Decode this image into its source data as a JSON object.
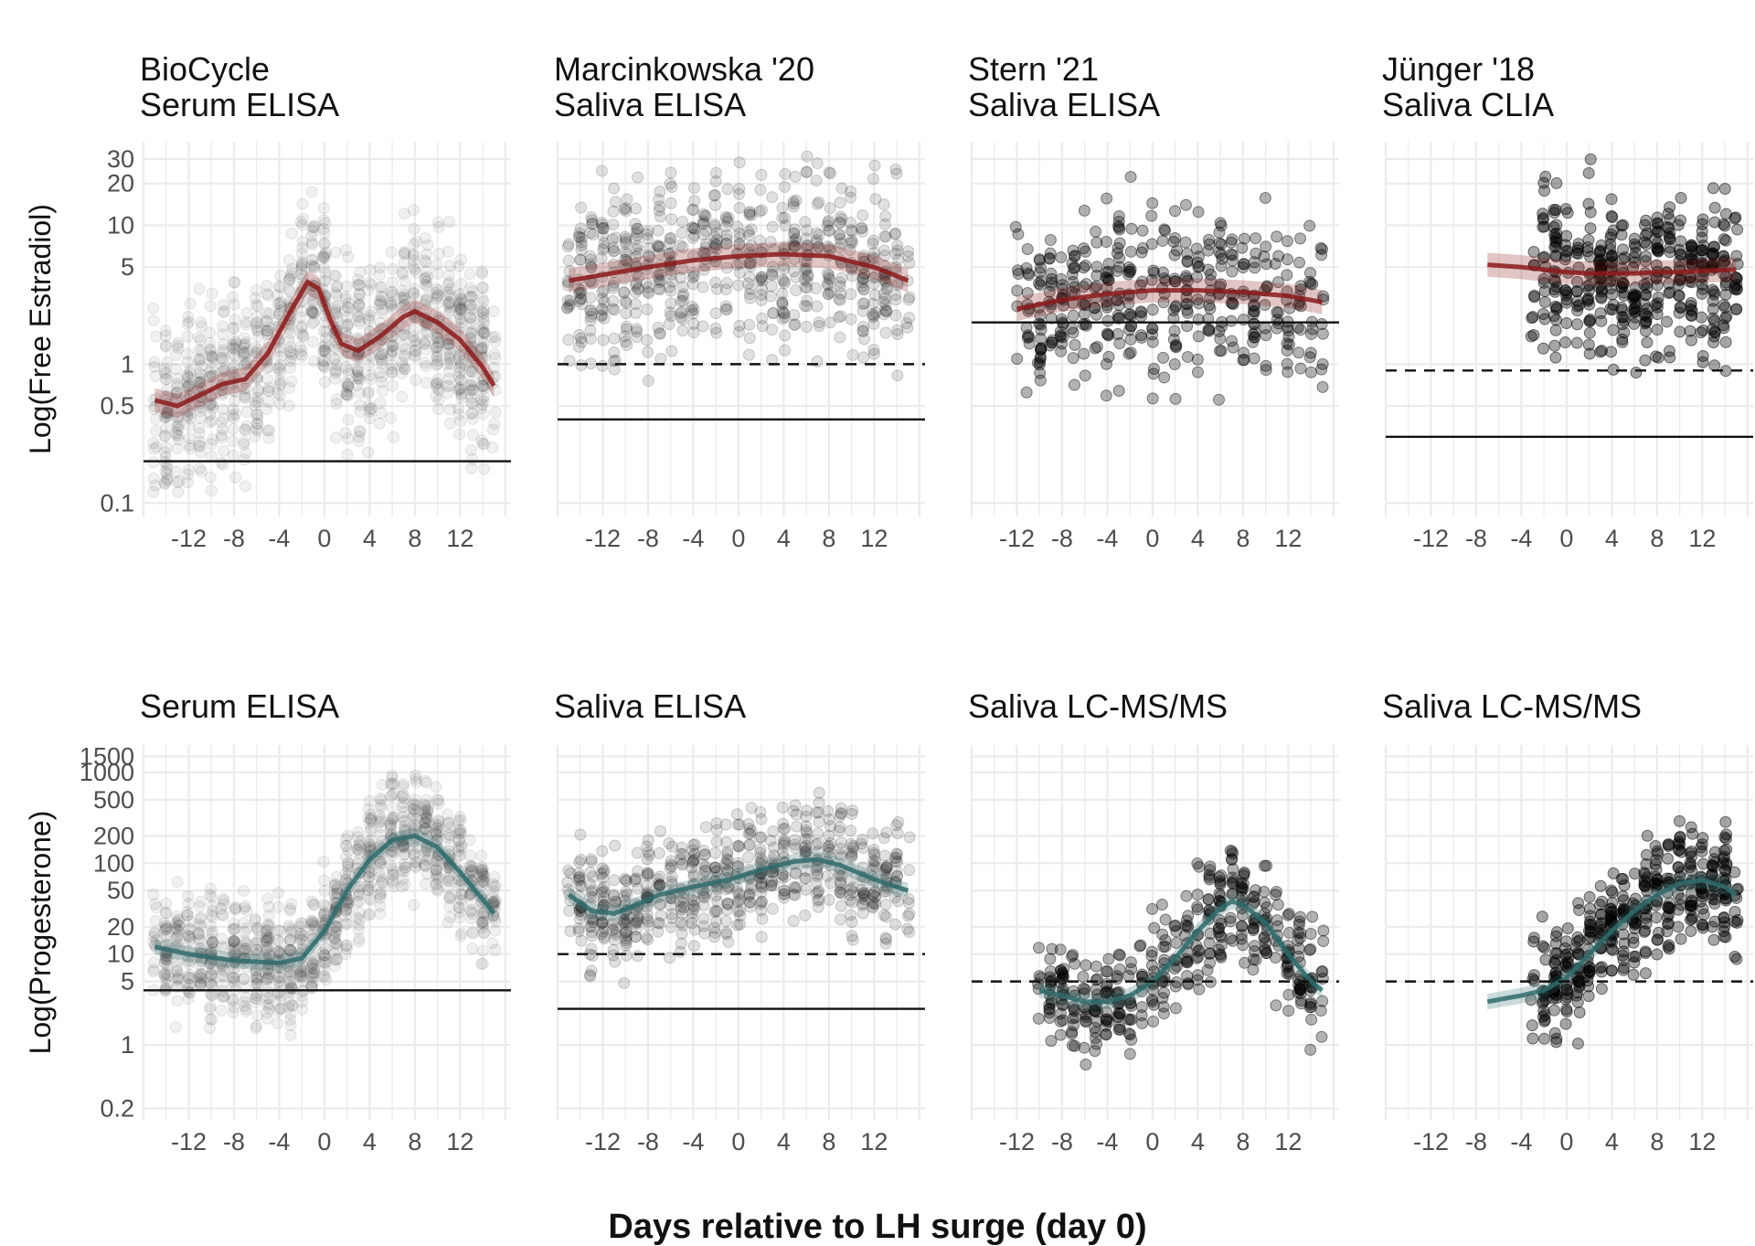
{
  "figure": {
    "xlabel": "Days relative to LH surge (day 0)",
    "x_tick_labels": [
      "-12",
      "-8",
      "-4",
      "0",
      "4",
      "8",
      "12"
    ],
    "colors": {
      "estradiol": "#8b1a1a",
      "progesterone": "#2f6b6b",
      "points": "#000000",
      "grid": "#ebebeb"
    }
  },
  "chart_data": [
    {
      "type": "scatter",
      "row": "estradiol",
      "title_line1": "BioCycle",
      "title_line2": "Serum ELISA",
      "ylabel": "Log(Free Estradiol)",
      "yscale": "log",
      "ylim": [
        0.08,
        40
      ],
      "xlim": [
        -16,
        16.5
      ],
      "y_ticks": [
        "0.1",
        "0.5",
        "1",
        "5",
        "10",
        "20",
        "30"
      ],
      "x_ticks": [
        -12,
        -8,
        -4,
        0,
        4,
        8,
        12
      ],
      "loq_solid": 0.2,
      "loq_dashed": null,
      "point_alpha": 0.06,
      "point_xrange": [
        -15,
        15
      ],
      "curve": {
        "x": [
          -15,
          -13,
          -11,
          -9,
          -7,
          -5,
          -3,
          -1.5,
          -0.5,
          0.5,
          1.5,
          3,
          5,
          7,
          8,
          10,
          12,
          14,
          15
        ],
        "y": [
          0.55,
          0.5,
          0.6,
          0.72,
          0.78,
          1.2,
          2.4,
          3.9,
          3.5,
          2.1,
          1.4,
          1.25,
          1.6,
          2.2,
          2.4,
          2.0,
          1.5,
          0.95,
          0.7
        ]
      }
    },
    {
      "type": "scatter",
      "row": "estradiol",
      "title_line1": "Marcinkowska '20",
      "title_line2": "Saliva ELISA",
      "ylabel": "",
      "yscale": "log",
      "ylim": [
        0.08,
        40
      ],
      "xlim": [
        -16,
        16.5
      ],
      "y_ticks": [],
      "x_ticks": [
        -12,
        -8,
        -4,
        0,
        4,
        8,
        12
      ],
      "loq_solid": 0.4,
      "loq_dashed": 1.0,
      "point_alpha": 0.12,
      "point_xrange": [
        -15,
        15
      ],
      "curve": {
        "x": [
          -15,
          -12,
          -8,
          -4,
          0,
          4,
          8,
          12,
          15
        ],
        "y": [
          4.0,
          4.4,
          5.0,
          5.6,
          6.0,
          6.2,
          6.0,
          5.0,
          4.0
        ]
      }
    },
    {
      "type": "scatter",
      "row": "estradiol",
      "title_line1": "Stern '21",
      "title_line2": "Saliva ELISA",
      "ylabel": "",
      "yscale": "log",
      "ylim": [
        0.08,
        40
      ],
      "xlim": [
        -16,
        16.5
      ],
      "y_ticks": [],
      "x_ticks": [
        -12,
        -8,
        -4,
        0,
        4,
        8,
        12
      ],
      "loq_solid": 2.0,
      "loq_dashed": null,
      "point_alpha": 0.3,
      "point_xrange": [
        -12,
        15
      ],
      "curve": {
        "x": [
          -12,
          -8,
          -4,
          0,
          4,
          8,
          12,
          15
        ],
        "y": [
          2.5,
          2.9,
          3.2,
          3.4,
          3.4,
          3.3,
          3.1,
          2.8
        ]
      }
    },
    {
      "type": "scatter",
      "row": "estradiol",
      "title_line1": "Jünger '18",
      "title_line2": "Saliva CLIA",
      "ylabel": "",
      "yscale": "log",
      "ylim": [
        0.08,
        40
      ],
      "xlim": [
        -16,
        16.5
      ],
      "y_ticks": [],
      "x_ticks": [
        -12,
        -8,
        -4,
        0,
        4,
        8,
        12
      ],
      "loq_solid": 0.3,
      "loq_dashed": 0.9,
      "point_alpha": 0.35,
      "point_xrange": [
        -3,
        15
      ],
      "curve": {
        "x": [
          -7,
          -4,
          -2,
          0,
          2,
          4,
          6,
          8,
          10,
          12,
          15
        ],
        "y": [
          5.2,
          5.0,
          4.8,
          4.6,
          4.5,
          4.5,
          4.5,
          4.6,
          4.6,
          4.7,
          4.8
        ]
      }
    },
    {
      "type": "scatter",
      "row": "progesterone",
      "title_line1": "",
      "title_line2": "Serum ELISA",
      "ylabel": "Log(Progesterone)",
      "yscale": "log",
      "ylim": [
        0.15,
        2000
      ],
      "xlim": [
        -16,
        16.5
      ],
      "y_ticks": [
        "0.2",
        "1",
        "5",
        "10",
        "20",
        "50",
        "100",
        "200",
        "500",
        "1000",
        "1500"
      ],
      "x_ticks": [
        -12,
        -8,
        -4,
        0,
        4,
        8,
        12
      ],
      "loq_solid": 4.0,
      "loq_dashed": null,
      "point_alpha": 0.06,
      "point_xrange": [
        -15,
        15
      ],
      "curve": {
        "x": [
          -15,
          -12,
          -8,
          -4,
          -2,
          0,
          2,
          4,
          6,
          8,
          10,
          12,
          14,
          15
        ],
        "y": [
          12,
          10,
          8.5,
          8,
          9,
          18,
          50,
          110,
          180,
          200,
          150,
          80,
          40,
          28
        ]
      }
    },
    {
      "type": "scatter",
      "row": "progesterone",
      "title_line1": "",
      "title_line2": "Saliva ELISA",
      "ylabel": "",
      "yscale": "log",
      "ylim": [
        0.15,
        2000
      ],
      "xlim": [
        -16,
        16.5
      ],
      "y_ticks": [],
      "x_ticks": [
        -12,
        -8,
        -4,
        0,
        4,
        8,
        12
      ],
      "loq_solid": 2.5,
      "loq_dashed": 10,
      "point_alpha": 0.12,
      "point_xrange": [
        -15,
        15
      ],
      "curve": {
        "x": [
          -15,
          -13,
          -11,
          -9,
          -7,
          -4,
          -1,
          2,
          5,
          7,
          9,
          11,
          13,
          15
        ],
        "y": [
          45,
          30,
          28,
          35,
          45,
          55,
          65,
          85,
          105,
          110,
          95,
          75,
          60,
          50
        ]
      }
    },
    {
      "type": "scatter",
      "row": "progesterone",
      "title_line1": "",
      "title_line2": "Saliva LC-MS/MS",
      "ylabel": "",
      "yscale": "log",
      "ylim": [
        0.15,
        2000
      ],
      "xlim": [
        -16,
        16.5
      ],
      "y_ticks": [],
      "x_ticks": [
        -12,
        -8,
        -4,
        0,
        4,
        8,
        12
      ],
      "loq_solid": null,
      "loq_dashed": 5,
      "point_alpha": 0.3,
      "point_xrange": [
        -10,
        15
      ],
      "curve": {
        "x": [
          -10,
          -8,
          -6,
          -4,
          -2,
          0,
          2,
          4,
          6,
          7,
          8,
          10,
          12,
          14,
          15
        ],
        "y": [
          4,
          3.5,
          3,
          3,
          3.5,
          5,
          9,
          18,
          32,
          38,
          35,
          22,
          10,
          5,
          4
        ]
      }
    },
    {
      "type": "scatter",
      "row": "progesterone",
      "title_line1": "",
      "title_line2": "Saliva LC-MS/MS",
      "ylabel": "",
      "yscale": "log",
      "ylim": [
        0.15,
        2000
      ],
      "xlim": [
        -16,
        16.5
      ],
      "y_ticks": [],
      "x_ticks": [
        -12,
        -8,
        -4,
        0,
        4,
        8,
        12
      ],
      "loq_solid": null,
      "loq_dashed": 5,
      "point_alpha": 0.35,
      "point_xrange": [
        -3,
        15
      ],
      "curve": {
        "x": [
          -7,
          -4,
          -2,
          0,
          2,
          4,
          6,
          8,
          10,
          12,
          14,
          15
        ],
        "y": [
          3,
          3.5,
          4,
          5.5,
          10,
          18,
          30,
          45,
          60,
          65,
          55,
          45
        ]
      }
    }
  ]
}
